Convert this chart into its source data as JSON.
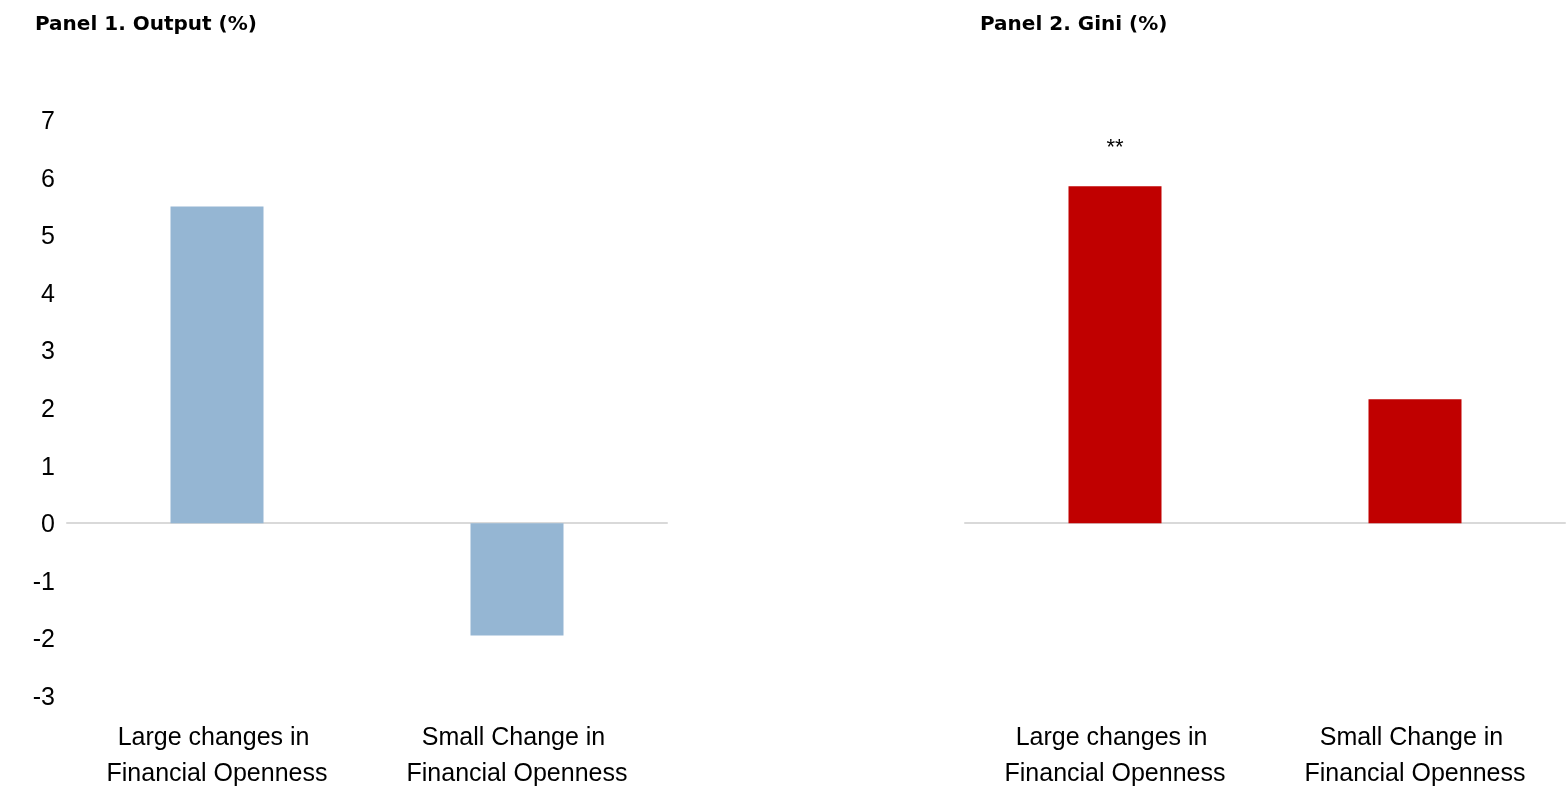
{
  "chart_data": [
    {
      "type": "bar",
      "title": "Panel 1. Output (%)",
      "categories": [
        "Large changes in Financial Openness",
        "Small Change in Financial Openness"
      ],
      "values": [
        5.5,
        -1.95
      ],
      "color": "#95b6d3",
      "ylim": [
        -3,
        7
      ],
      "yticks": [
        -3,
        -2,
        -1,
        0,
        1,
        2,
        3,
        4,
        5,
        6,
        7
      ]
    },
    {
      "type": "bar",
      "title": "Panel 2. Gini (%)",
      "categories": [
        "Large changes in Financial Openness",
        "Small Change in Financial Openness"
      ],
      "values": [
        5.85,
        2.15
      ],
      "color": "#c00000",
      "ylim": [
        -3,
        7
      ],
      "yticks": [
        -3,
        -2,
        -1,
        0,
        1,
        2,
        3,
        4,
        5,
        6,
        7
      ],
      "tick_labels": "x",
      "annotations": [
        {
          "text": "**",
          "x": "Large changes in Financial Openness",
          "y": 5.85
        }
      ]
    }
  ]
}
